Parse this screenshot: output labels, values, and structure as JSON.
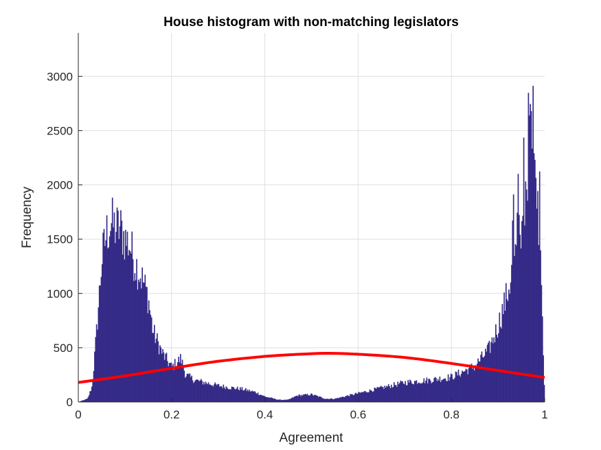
{
  "chart_data": {
    "type": "bar",
    "title": "House  histogram with non-matching legislators",
    "xlabel": "Agreement",
    "ylabel": "Frequency",
    "xlim": [
      0,
      1
    ],
    "ylim": [
      0,
      3400
    ],
    "grid": true,
    "x_ticks": [
      0,
      0.2,
      0.4,
      0.6,
      0.8,
      1
    ],
    "x_tick_labels": [
      "0",
      "0.2",
      "0.4",
      "0.6",
      "0.8",
      "1"
    ],
    "y_ticks": [
      0,
      500,
      1000,
      1500,
      2000,
      2500,
      3000
    ],
    "y_tick_labels": [
      "0",
      "500",
      "1000",
      "1500",
      "2000",
      "2500",
      "3000"
    ],
    "bar_color": "#352a87",
    "fit_color": "#ff0000",
    "histogram_profile": {
      "x": [
        0.0,
        0.02,
        0.03,
        0.04,
        0.05,
        0.06,
        0.07,
        0.08,
        0.09,
        0.1,
        0.11,
        0.12,
        0.13,
        0.14,
        0.15,
        0.16,
        0.18,
        0.2,
        0.22,
        0.23,
        0.25,
        0.28,
        0.3,
        0.33,
        0.35,
        0.38,
        0.4,
        0.43,
        0.45,
        0.47,
        0.5,
        0.53,
        0.55,
        0.58,
        0.6,
        0.63,
        0.65,
        0.7,
        0.75,
        0.8,
        0.82,
        0.85,
        0.88,
        0.9,
        0.92,
        0.93,
        0.94,
        0.95,
        0.96,
        0.97,
        0.98,
        0.99,
        1.0
      ],
      "y": [
        0,
        30,
        150,
        700,
        1300,
        1550,
        1650,
        1600,
        1600,
        1500,
        1450,
        1300,
        1200,
        1100,
        950,
        650,
        450,
        320,
        400,
        250,
        200,
        170,
        150,
        130,
        120,
        90,
        50,
        20,
        20,
        60,
        70,
        30,
        30,
        60,
        80,
        110,
        130,
        180,
        200,
        230,
        270,
        330,
        480,
        700,
        1000,
        1200,
        1500,
        1700,
        2000,
        2500,
        2100,
        1400,
        0
      ]
    },
    "fit_curve": {
      "name": "",
      "x": [
        0,
        0.1,
        0.2,
        0.3,
        0.4,
        0.5,
        0.55,
        0.6,
        0.7,
        0.8,
        0.9,
        1.0
      ],
      "y": [
        180,
        240,
        310,
        375,
        420,
        445,
        448,
        440,
        410,
        355,
        290,
        225
      ]
    }
  }
}
